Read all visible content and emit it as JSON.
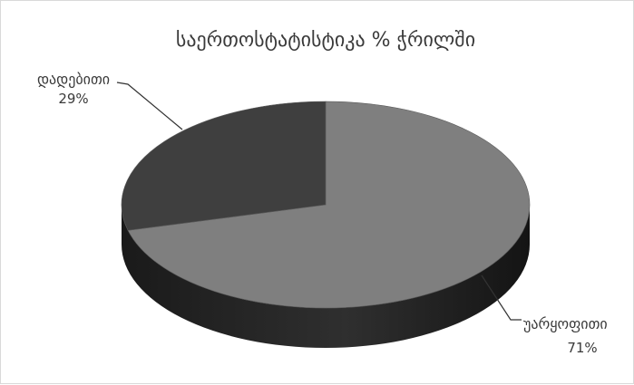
{
  "chart_data": {
    "type": "pie",
    "style": "3d",
    "title": "საერთოსტატისტიკა % ჭრილში",
    "slices": [
      {
        "label": "დადებითი",
        "value": 29,
        "value_label": "29%",
        "color": "#3f3f3f"
      },
      {
        "label": "უარყოფითი",
        "value": 71,
        "value_label": "71%",
        "color": "#7f7f7f"
      }
    ],
    "side_colors": {
      "dark": "#1e1e1e",
      "light": "#2a2a2a"
    },
    "legend": "none",
    "grid": false
  }
}
